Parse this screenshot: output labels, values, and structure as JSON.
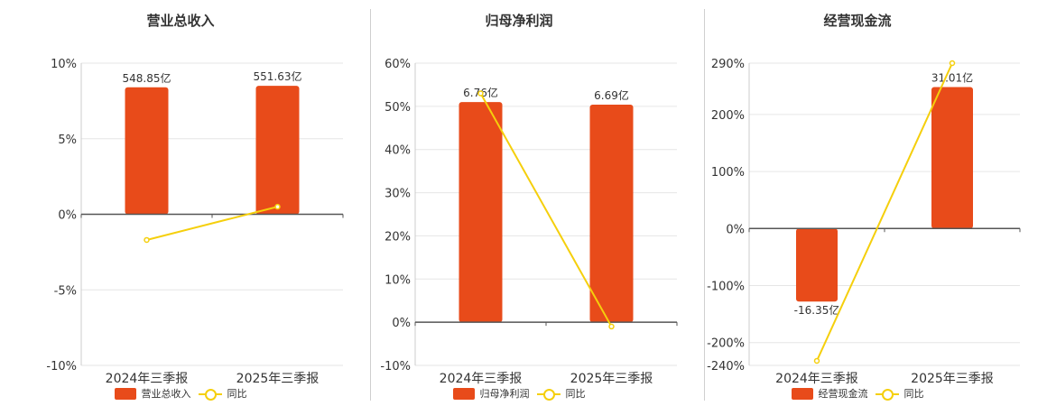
{
  "colors": {
    "bar": "#e84b1a",
    "line": "#f5cf0c",
    "grid": "#e6e6e6",
    "axis": "#555555",
    "text": "#333333"
  },
  "chart_data": [
    {
      "type": "bar",
      "title": "营业总收入",
      "categories": [
        "2024年三季报",
        "2025年三季报"
      ],
      "y_ticks": [
        "10%",
        "5%",
        "0%",
        "-5%",
        "-10%"
      ],
      "ylim": [
        -10,
        10
      ],
      "bar_values": [
        8.4,
        8.5
      ],
      "bar_labels": [
        "548.85亿",
        "551.63亿"
      ],
      "line_values": [
        -1.7,
        0.5
      ],
      "series": [
        {
          "name": "营业总收入",
          "type": "bar"
        },
        {
          "name": "同比",
          "type": "line"
        }
      ],
      "grid": true,
      "legend": "bottom"
    },
    {
      "type": "bar",
      "title": "归母净利润",
      "categories": [
        "2024年三季报",
        "2025年三季报"
      ],
      "y_ticks": [
        "60%",
        "50%",
        "40%",
        "30%",
        "20%",
        "10%",
        "0%",
        "-10%"
      ],
      "ylim": [
        -10,
        60
      ],
      "bar_values": [
        51,
        50.4
      ],
      "bar_labels": [
        "6.76亿",
        "6.69亿"
      ],
      "line_values": [
        53,
        -1
      ],
      "series": [
        {
          "name": "归母净利润",
          "type": "bar"
        },
        {
          "name": "同比",
          "type": "line"
        }
      ],
      "grid": true,
      "legend": "bottom"
    },
    {
      "type": "bar",
      "title": "经营现金流",
      "categories": [
        "2024年三季报",
        "2025年三季报"
      ],
      "y_ticks": [
        "290%",
        "200%",
        "100%",
        "0%",
        "-100%",
        "-200%",
        "-240%"
      ],
      "ylim": [
        -240,
        290
      ],
      "bar_values": [
        -128,
        248
      ],
      "bar_labels": [
        "-16.35亿",
        "31.01亿"
      ],
      "line_values": [
        -232,
        290
      ],
      "series": [
        {
          "name": "经营现金流",
          "type": "bar"
        },
        {
          "name": "同比",
          "type": "line"
        }
      ],
      "grid": true,
      "legend": "bottom"
    }
  ]
}
